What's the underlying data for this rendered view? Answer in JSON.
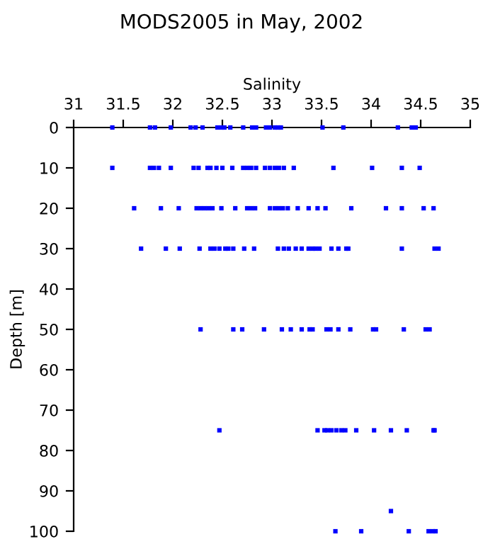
{
  "chart_data": {
    "type": "scatter",
    "title": "MODS2005 in May, 2002",
    "xlabel": "Salinity",
    "ylabel": "Depth [m]",
    "xlim": [
      31,
      35
    ],
    "ylim": [
      100,
      0
    ],
    "xticks": [
      31,
      31.5,
      32,
      32.5,
      33,
      33.5,
      34,
      34.5,
      35
    ],
    "yticks": [
      0,
      10,
      20,
      30,
      40,
      50,
      60,
      70,
      80,
      90,
      100
    ],
    "marker": "square",
    "grid": false,
    "series": [
      {
        "color": "#0000ff",
        "x": [
          31.39,
          31.77,
          31.82,
          31.98,
          32.18,
          32.23,
          32.3,
          32.45,
          32.49,
          32.52,
          32.58,
          32.71,
          32.8,
          32.84,
          32.94,
          32.98,
          33.03,
          33.06,
          33.09,
          33.51,
          33.72,
          34.27,
          34.41,
          34.45,
          31.39,
          31.77,
          31.81,
          31.86,
          31.98,
          32.21,
          32.26,
          32.35,
          32.38,
          32.44,
          32.5,
          32.6,
          32.71,
          32.75,
          32.79,
          32.84,
          32.93,
          32.98,
          33.03,
          33.07,
          33.12,
          33.22,
          33.62,
          34.01,
          34.31,
          34.49,
          31.61,
          31.88,
          32.06,
          32.24,
          32.28,
          32.32,
          32.36,
          32.4,
          32.49,
          32.63,
          32.75,
          32.79,
          32.83,
          32.98,
          33.03,
          33.07,
          33.11,
          33.16,
          33.26,
          33.37,
          33.46,
          33.54,
          33.8,
          34.15,
          34.31,
          34.53,
          34.63,
          31.68,
          31.93,
          32.07,
          32.27,
          32.38,
          32.42,
          32.47,
          32.53,
          32.56,
          32.61,
          32.72,
          32.82,
          33.06,
          33.12,
          33.17,
          33.24,
          33.3,
          33.37,
          33.41,
          33.44,
          33.48,
          33.6,
          33.67,
          33.75,
          33.77,
          34.31,
          34.64,
          34.68,
          32.28,
          32.61,
          32.7,
          32.92,
          33.1,
          33.19,
          33.3,
          33.38,
          33.41,
          33.55,
          33.59,
          33.67,
          33.79,
          34.02,
          34.05,
          34.33,
          34.55,
          34.59,
          32.47,
          33.46,
          33.53,
          33.56,
          33.6,
          33.65,
          33.7,
          33.74,
          33.85,
          34.03,
          34.2,
          34.36,
          34.63,
          34.64,
          34.2,
          33.64,
          33.9,
          34.38,
          34.58,
          34.62,
          34.65
        ],
        "values": [
          0,
          0,
          0,
          0,
          0,
          0,
          0,
          0,
          0,
          0,
          0,
          0,
          0,
          0,
          0,
          0,
          0,
          0,
          0,
          0,
          0,
          0,
          0,
          0,
          10,
          10,
          10,
          10,
          10,
          10,
          10,
          10,
          10,
          10,
          10,
          10,
          10,
          10,
          10,
          10,
          10,
          10,
          10,
          10,
          10,
          10,
          10,
          10,
          10,
          10,
          20,
          20,
          20,
          20,
          20,
          20,
          20,
          20,
          20,
          20,
          20,
          20,
          20,
          20,
          20,
          20,
          20,
          20,
          20,
          20,
          20,
          20,
          20,
          20,
          20,
          20,
          20,
          30,
          30,
          30,
          30,
          30,
          30,
          30,
          30,
          30,
          30,
          30,
          30,
          30,
          30,
          30,
          30,
          30,
          30,
          30,
          30,
          30,
          30,
          30,
          30,
          30,
          30,
          30,
          30,
          50,
          50,
          50,
          50,
          50,
          50,
          50,
          50,
          50,
          50,
          50,
          50,
          50,
          50,
          50,
          50,
          50,
          50,
          75,
          75,
          75,
          75,
          75,
          75,
          75,
          75,
          75,
          75,
          75,
          75,
          75,
          75,
          95,
          100,
          100,
          100,
          100,
          100,
          100
        ]
      }
    ]
  }
}
